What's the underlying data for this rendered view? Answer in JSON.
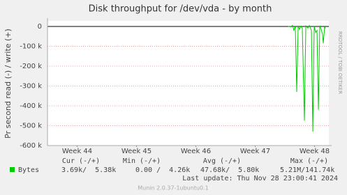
{
  "chart_data": {
    "type": "line",
    "title": "Disk throughput for /dev/vda - by month",
    "y_label": "Pr second read (-) / write (+)",
    "side_note": "RRDTOOL / TOBI OETIKER",
    "x": [
      48.059,
      48.094,
      48.129,
      48.153,
      48.176,
      48.2,
      48.224,
      48.247,
      48.271,
      48.294,
      48.329,
      48.353,
      48.388,
      48.412,
      48.447,
      48.471,
      48.494,
      48.518,
      48.541,
      48.565,
      48.588,
      48.612,
      48.635,
      48.647,
      48.671,
      48.682
    ],
    "series": [
      {
        "name": "Bytes",
        "color": "#00cc00",
        "values": [
          0,
          -2000,
          5000,
          -20000,
          3000,
          -330000,
          4000,
          -15000,
          2000,
          -10000,
          -475000,
          3000,
          -8000,
          5000,
          -20000,
          -530000,
          2000,
          -30000,
          -20000,
          -420000,
          4000,
          -15000,
          -40000,
          -85000,
          3000,
          -10000
        ]
      }
    ],
    "xlim": [
      44,
      48.741
    ],
    "xticks": [
      {
        "value": 44.5,
        "label": "Week 44"
      },
      {
        "value": 45.5,
        "label": "Week 45"
      },
      {
        "value": 46.5,
        "label": "Week 46"
      },
      {
        "value": 47.5,
        "label": "Week 47"
      },
      {
        "value": 48.5,
        "label": "Week 48"
      }
    ],
    "ylim": [
      -600000,
      28000
    ],
    "yticks": [
      0,
      {
        "value": -100000,
        "label": "-100 k"
      },
      {
        "value": -200000,
        "label": "-200 k"
      },
      {
        "value": -300000,
        "label": "-300 k"
      },
      {
        "value": -400000,
        "label": "-400 k"
      },
      {
        "value": -500000,
        "label": "-500 k"
      },
      {
        "value": -600000,
        "label": "-600 k"
      }
    ],
    "grid": true,
    "legend_table": {
      "headers": [
        "Cur (-/+)",
        "Min (-/+)",
        "Avg (-/+)",
        "Max (-/+)"
      ],
      "cells": [
        "3.69k/  5.38k",
        "0.00 /  4.26k",
        "47.68k/  5.80k",
        "5.21M/141.74k"
      ]
    },
    "last_update": "Last update: Thu Nov 28 23:00:41 2024",
    "footer": "Munin 2.0.37-1ubuntu0.1"
  }
}
